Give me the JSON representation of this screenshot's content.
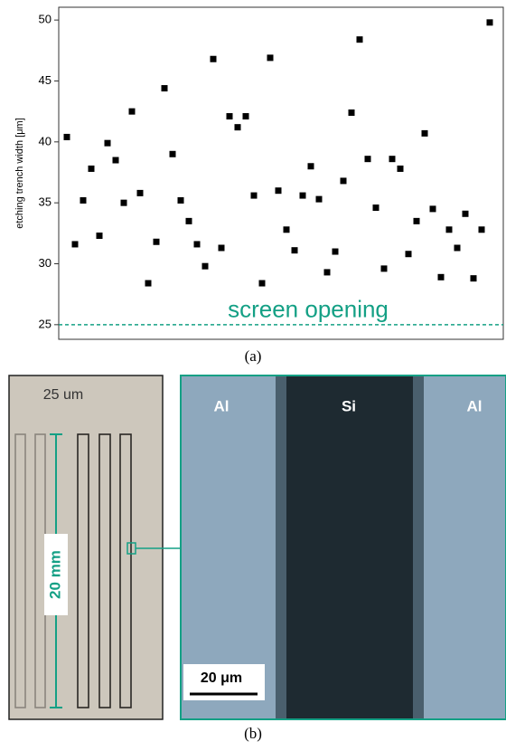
{
  "chart_data": {
    "type": "scatter",
    "y_label": "etching trench width [μm]",
    "values": [
      40.4,
      31.6,
      35.2,
      37.8,
      32.3,
      39.9,
      38.5,
      35.0,
      42.5,
      35.8,
      28.4,
      31.8,
      44.4,
      39.0,
      35.2,
      33.5,
      31.6,
      29.8,
      46.8,
      31.3,
      42.1,
      41.2,
      42.1,
      35.6,
      28.4,
      46.9,
      36.0,
      32.8,
      31.1,
      35.6,
      38.0,
      35.3,
      29.3,
      31.0,
      36.8,
      42.4,
      48.4,
      38.6,
      34.6,
      29.6,
      38.6,
      37.8,
      30.8,
      33.5,
      40.7,
      34.5,
      28.9,
      32.8,
      31.3,
      34.1,
      28.8,
      32.8,
      49.8
    ],
    "color": "#000000",
    "ylim": [
      23.8,
      51.05
    ],
    "yticks": [
      25,
      30,
      35,
      40,
      45,
      50
    ],
    "grid": false,
    "threshold": {
      "value": 25,
      "label": "screen opening",
      "color": "#14a085"
    }
  },
  "figure": {
    "caption_a": "(a)",
    "caption_b": "(b)",
    "photo_label": "25 um",
    "length_label": "20 mm",
    "micro_labels": [
      "Al",
      "Si",
      "Al"
    ],
    "scale_label": "20 μm"
  }
}
